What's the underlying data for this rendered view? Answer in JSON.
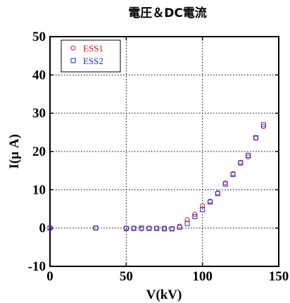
{
  "chart_data": {
    "type": "scatter",
    "title": "電圧＆DC電流",
    "xlabel": "V(kV)",
    "ylabel": "I(μ A)",
    "xlim": [
      0,
      150
    ],
    "ylim": [
      -10,
      50
    ],
    "x_ticks": [
      "0",
      "50",
      "100",
      "150"
    ],
    "y_ticks": [
      "-10",
      "0",
      "10",
      "20",
      "30",
      "40",
      "50"
    ],
    "grid": "dotted",
    "legend_position": "top-left",
    "series": [
      {
        "name": "ESS1",
        "marker": "circle",
        "color": "#e0141e",
        "points": [
          [
            0,
            0.1
          ],
          [
            30,
            0.0
          ],
          [
            50,
            0.0
          ],
          [
            55,
            0.0
          ],
          [
            60,
            -0.2
          ],
          [
            65,
            0.0
          ],
          [
            70,
            0.0
          ],
          [
            75,
            0.0
          ],
          [
            80,
            -0.1
          ],
          [
            85,
            0.5
          ],
          [
            90,
            2.2
          ],
          [
            95,
            3.6
          ],
          [
            100,
            5.8
          ],
          [
            105,
            7.0
          ],
          [
            110,
            9.2
          ],
          [
            115,
            11.8
          ],
          [
            120,
            14.2
          ],
          [
            125,
            17.2
          ],
          [
            130,
            18.6
          ],
          [
            135,
            23.5
          ],
          [
            140,
            26.5
          ]
        ]
      },
      {
        "name": "ESS2",
        "marker": "square",
        "color": "#1a2bd8",
        "points": [
          [
            0,
            0.0
          ],
          [
            30,
            0.0
          ],
          [
            50,
            -0.1
          ],
          [
            55,
            -0.1
          ],
          [
            60,
            0.0
          ],
          [
            65,
            -0.1
          ],
          [
            70,
            -0.1
          ],
          [
            75,
            -0.2
          ],
          [
            80,
            -0.2
          ],
          [
            85,
            0.2
          ],
          [
            90,
            1.2
          ],
          [
            95,
            3.0
          ],
          [
            100,
            4.8
          ],
          [
            105,
            6.8
          ],
          [
            110,
            9.0
          ],
          [
            115,
            11.5
          ],
          [
            120,
            14.0
          ],
          [
            125,
            17.0
          ],
          [
            130,
            19.0
          ],
          [
            135,
            23.6
          ],
          [
            140,
            27.0
          ]
        ]
      }
    ]
  }
}
